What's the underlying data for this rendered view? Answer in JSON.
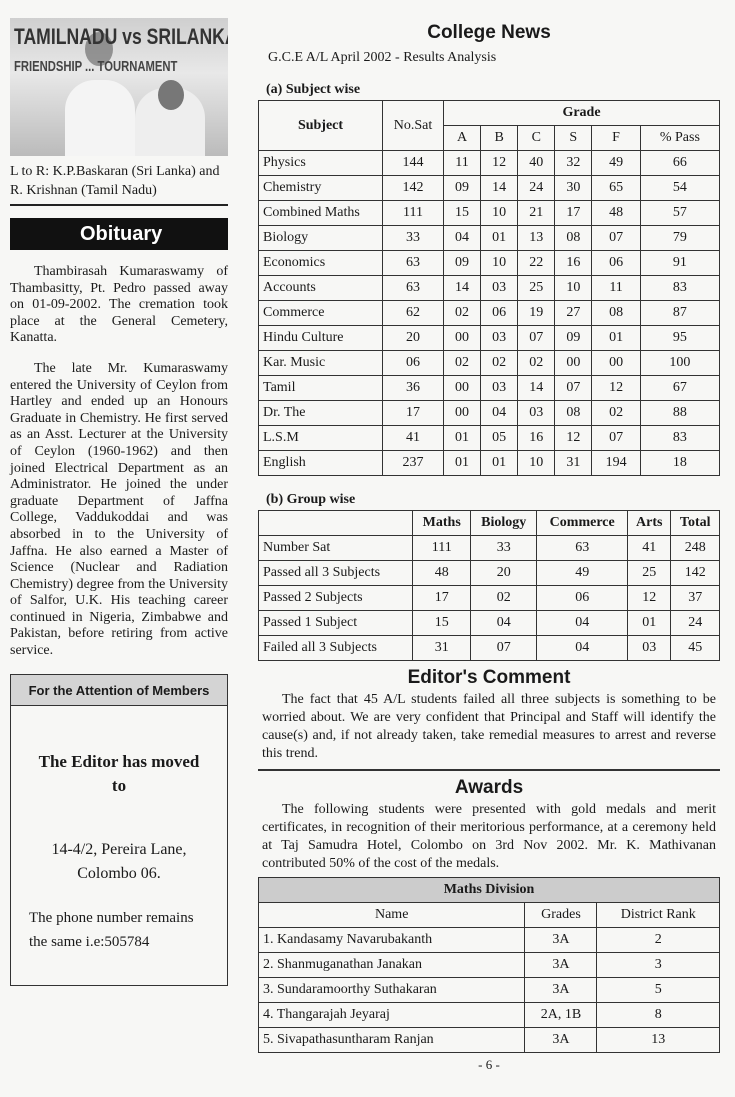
{
  "photo": {
    "banner_line1": "TAMILNADU vs SRILANKA",
    "banner_line2": "FRIENDSHIP ... TOURNAMENT",
    "caption": "L to R:  K.P.Baskaran (Sri Lanka) and R. Krishnan (Tamil Nadu)"
  },
  "obituary": {
    "heading": "Obituary",
    "paragraphs": [
      "Thambirasah Kumaraswamy of Thambasitty, Pt. Pedro passed away on 01-09-2002. The cremation took place at the General Cemetery, Kanatta.",
      "The late Mr. Kumaraswamy entered the University of Ceylon from Hartley and ended up an Honours Graduate in Chemistry. He first served as an Asst. Lecturer at the University of Ceylon (1960-1962) and then joined Electrical Department as an Administrator. He joined the under graduate Department of Jaffna College, Vaddukoddai and was absorbed in to the University of Jaffna. He also earned a Master of Science (Nuclear and Radiation Chemistry) degree from the University of Salfor, U.K. His teaching career continued in Nigeria, Zimbabwe and Pakistan, before retiring from active service."
    ]
  },
  "attention": {
    "heading": "For the Attention of Members",
    "moved": "The Editor has moved to",
    "address_line1": "14-4/2, Pereira Lane,",
    "address_line2": "Colombo 06.",
    "phone": "The phone number remains the same i.e:505784"
  },
  "college_news": {
    "title": "College News",
    "subtitle": "G.C.E A/L April 2002 - Results Analysis",
    "subject_wise": {
      "label": "(a) Subject wise",
      "headers": {
        "subject": "Subject",
        "nosat": "No.Sat",
        "grade": "Grade",
        "grades": [
          "A",
          "B",
          "C",
          "S",
          "F",
          "% Pass"
        ]
      },
      "rows": [
        [
          "Physics",
          "144",
          "11",
          "12",
          "40",
          "32",
          "49",
          "66"
        ],
        [
          "Chemistry",
          "142",
          "09",
          "14",
          "24",
          "30",
          "65",
          "54"
        ],
        [
          "Combined Maths",
          "111",
          "15",
          "10",
          "21",
          "17",
          "48",
          "57"
        ],
        [
          "Biology",
          "33",
          "04",
          "01",
          "13",
          "08",
          "07",
          "79"
        ],
        [
          "Economics",
          "63",
          "09",
          "10",
          "22",
          "16",
          "06",
          "91"
        ],
        [
          "Accounts",
          "63",
          "14",
          "03",
          "25",
          "10",
          "11",
          "83"
        ],
        [
          "Commerce",
          "62",
          "02",
          "06",
          "19",
          "27",
          "08",
          "87"
        ],
        [
          "Hindu Culture",
          "20",
          "00",
          "03",
          "07",
          "09",
          "01",
          "95"
        ],
        [
          "Kar. Music",
          "06",
          "02",
          "02",
          "02",
          "00",
          "00",
          "100"
        ],
        [
          "Tamil",
          "36",
          "00",
          "03",
          "14",
          "07",
          "12",
          "67"
        ],
        [
          "Dr. The",
          "17",
          "00",
          "04",
          "03",
          "08",
          "02",
          "88"
        ],
        [
          "L.S.M",
          "41",
          "01",
          "05",
          "16",
          "12",
          "07",
          "83"
        ],
        [
          "English",
          "237",
          "01",
          "01",
          "10",
          "31",
          "194",
          "18"
        ]
      ]
    },
    "group_wise": {
      "label": "(b) Group wise",
      "headers": [
        "",
        "Maths",
        "Biology",
        "Commerce",
        "Arts",
        "Total"
      ],
      "rows": [
        [
          "Number Sat",
          "111",
          "33",
          "63",
          "41",
          "248"
        ],
        [
          "Passed all 3 Subjects",
          "48",
          "20",
          "49",
          "25",
          "142"
        ],
        [
          "Passed 2 Subjects",
          "17",
          "02",
          "06",
          "12",
          "37"
        ],
        [
          "Passed 1 Subject",
          "15",
          "04",
          "04",
          "01",
          "24"
        ],
        [
          "Failed all 3 Subjects",
          "31",
          "07",
          "04",
          "03",
          "45"
        ]
      ]
    }
  },
  "editors_comment": {
    "title": "Editor's Comment",
    "text": "The fact that 45 A/L students failed all three subjects is something to be worried about. We are very confident that Principal and Staff will identify the cause(s) and, if not already taken, take remedial measures to arrest and reverse this trend."
  },
  "awards": {
    "title": "Awards",
    "text": "The following students were presented with gold medals and merit certificates, in recognition of their meritorious performance, at a ceremony held at Taj Samudra Hotel, Colombo on 3rd Nov 2002. Mr. K. Mathivanan contributed 50% of the cost of the medals.",
    "table_title": "Maths Division",
    "headers": [
      "Name",
      "Grades",
      "District Rank"
    ],
    "rows": [
      [
        "1.  Kandasamy Navarubakanth",
        "3A",
        "2"
      ],
      [
        "2.  Shanmuganathan Janakan",
        "3A",
        "3"
      ],
      [
        "3.  Sundaramoorthy Suthakaran",
        "3A",
        "5"
      ],
      [
        "4.  Thangarajah Jeyaraj",
        "2A, 1B",
        "8"
      ],
      [
        "5.  Sivapathasuntharam Ranjan",
        "3A",
        "13"
      ]
    ]
  },
  "page_number": "- 6 -"
}
